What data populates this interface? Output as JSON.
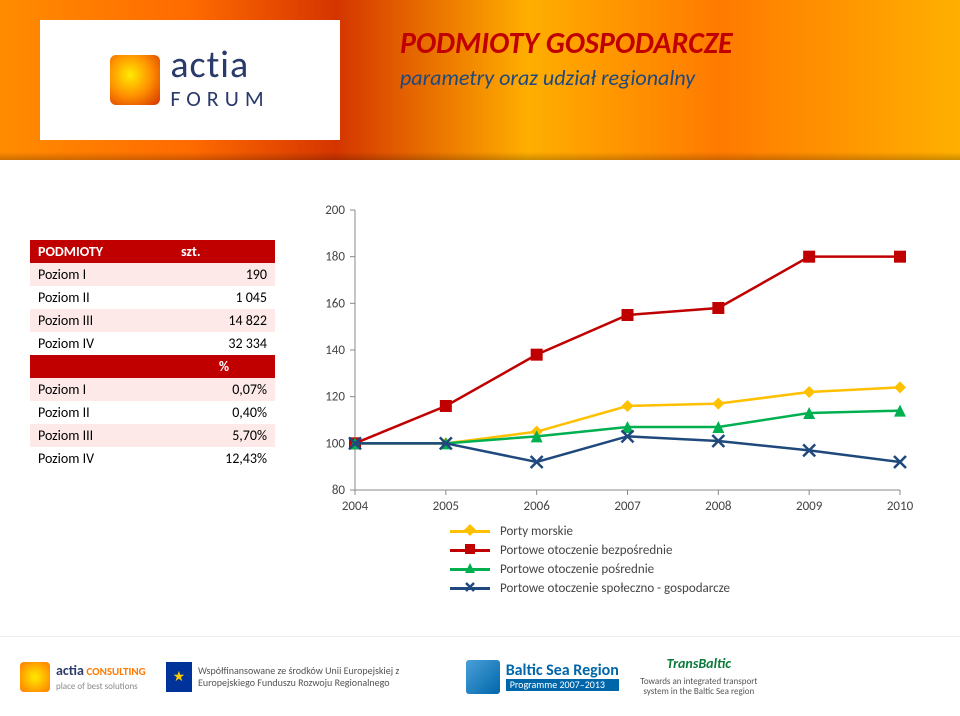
{
  "header": {
    "logo_word": "actia",
    "logo_forum": "FORUM",
    "title": "PODMIOTY GOSPODARCZE",
    "subtitle": "parametry oraz udział regionalny",
    "title_color": "#c00000",
    "subtitle_color": "#1f497d"
  },
  "table": {
    "col1": "PODMIOTY",
    "col2": "szt.",
    "rows_abs": [
      {
        "label": "Poziom I",
        "value": "190"
      },
      {
        "label": "Poziom II",
        "value": "1 045"
      },
      {
        "label": "Poziom III",
        "value": "14 822"
      },
      {
        "label": "Poziom IV",
        "value": "32 334"
      }
    ],
    "mid_header": "%",
    "rows_pct": [
      {
        "label": "Poziom I",
        "value": "0,07%"
      },
      {
        "label": "Poziom II",
        "value": "0,40%"
      },
      {
        "label": "Poziom III",
        "value": "5,70%"
      },
      {
        "label": "Poziom IV",
        "value": "12,43%"
      }
    ],
    "header_bg": "#c00000",
    "row_odd_bg": "#fce9e8"
  },
  "chart": {
    "type": "line",
    "x_categories": [
      "2004",
      "2005",
      "2006",
      "2007",
      "2008",
      "2009",
      "2010"
    ],
    "ylim": [
      80,
      200
    ],
    "ytick_step": 20,
    "grid": false,
    "axis_color": "#888888",
    "label_fontsize": 13,
    "series": [
      {
        "name": "Porty morskie",
        "color": "#ffc000",
        "marker": "diamond",
        "values": [
          100,
          100,
          105,
          116,
          117,
          122,
          124
        ]
      },
      {
        "name": "Portowe otoczenie bezpośrednie",
        "color": "#c00000",
        "marker": "square",
        "values": [
          100,
          116,
          138,
          155,
          158,
          180,
          180
        ]
      },
      {
        "name": "Portowe otoczenie pośrednie",
        "color": "#00b050",
        "marker": "triangle",
        "values": [
          100,
          100,
          103,
          107,
          107,
          113,
          114
        ]
      },
      {
        "name": "Portowe otoczenie społeczno - gospodarcze",
        "color": "#1f497d",
        "marker": "x",
        "values": [
          100,
          100,
          92,
          103,
          101,
          97,
          92
        ]
      }
    ]
  },
  "footer": {
    "actia_consulting": "CONSULTING",
    "actia_tag": "place of best solutions",
    "eu_text": "Współfinansowane ze środków Unii Europejskiej z Europejskiego Funduszu Rozwoju Regionalnego",
    "bsr_title": "Baltic Sea Region",
    "bsr_sub": "Programme 2007–2013",
    "tb_title": "TransBaltic",
    "tb_sub": "Towards an integrated transport system in the Baltic Sea region"
  }
}
